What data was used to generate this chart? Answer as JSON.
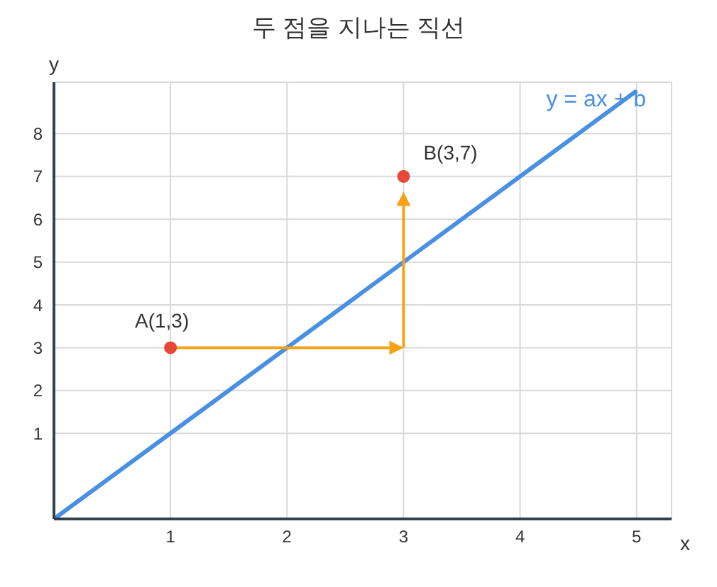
{
  "chart_data": {
    "type": "scatter",
    "title": "두 점을 지나는 직선",
    "xlabel": "x",
    "ylabel": "y",
    "xlim": [
      0,
      5.3
    ],
    "ylim": [
      -1,
      9.2
    ],
    "xticks": [
      1,
      2,
      3,
      4,
      5
    ],
    "yticks": [
      1,
      2,
      3,
      4,
      5,
      6,
      7,
      8
    ],
    "grid": true,
    "line_style": "solid",
    "series": [
      {
        "type": "line",
        "color": "#4a90e2",
        "x": [
          0,
          5
        ],
        "values": [
          -1,
          9
        ],
        "marker": "none"
      },
      {
        "color": "#e8483a",
        "x": [
          1,
          3
        ],
        "values": [
          3,
          7
        ],
        "marker": "circle"
      }
    ],
    "annotations": [
      {
        "text": "A(1,3)",
        "x": 1,
        "y": 3
      },
      {
        "text": "B(3,7)",
        "x": 3,
        "y": 7
      },
      "y = ax + b"
    ]
  }
}
